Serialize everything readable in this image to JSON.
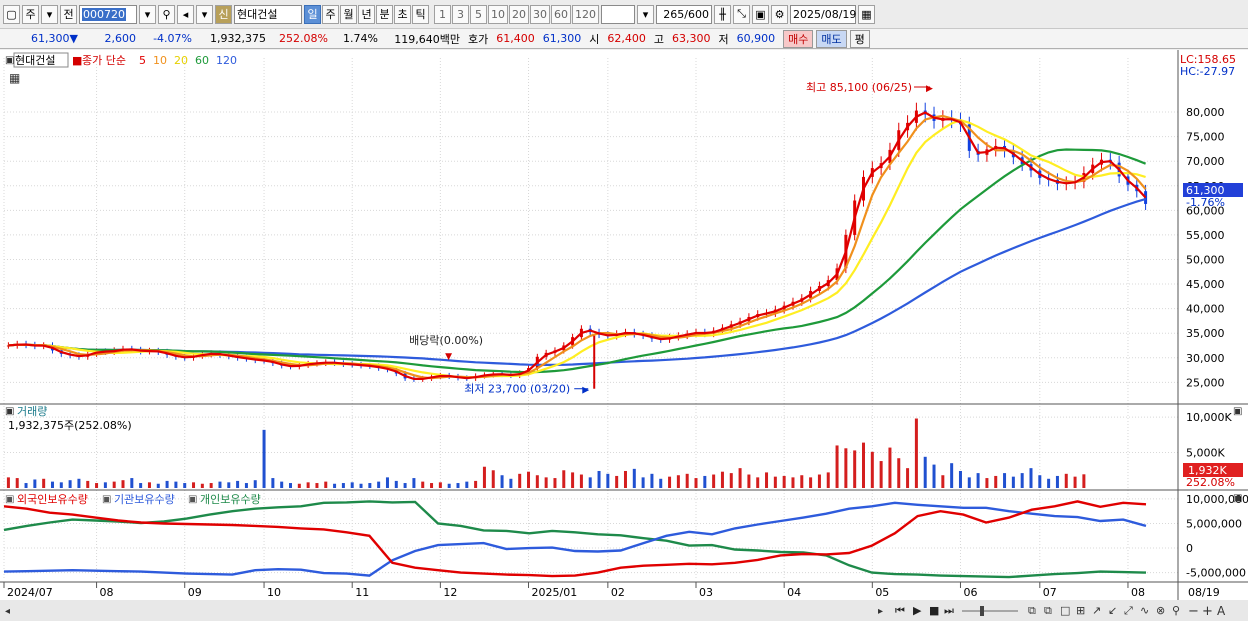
{
  "toolbar": {
    "period_label": "주",
    "prev_label": "전",
    "code": "000720",
    "badge": "신",
    "stock_name": "현대건설",
    "periods": [
      "일",
      "주",
      "월",
      "년",
      "분",
      "초",
      "틱"
    ],
    "selected_period": "일",
    "intervals": [
      "1",
      "3",
      "5",
      "10",
      "20",
      "30",
      "60",
      "120"
    ],
    "count": "265",
    "total": "/600",
    "date": "2025/08/19"
  },
  "quote": {
    "price": "61,300▼",
    "change": "2,600",
    "change_pct": "-4.07%",
    "volume": "1,932,375",
    "vol_ratio": "252.08%",
    "turnover": "1.74%",
    "amount": "119,640백만",
    "hoga_label": "호가",
    "ask": "61,400",
    "bid": "61,300",
    "open_label": "시",
    "open": "62,400",
    "high_label": "고",
    "high": "63,300",
    "low_label": "저",
    "low": "60,900",
    "buy": "매수",
    "sell": "매도",
    "eval": "평"
  },
  "price_panel": {
    "name": "현대건설",
    "legend_title": "종가 단순",
    "ma_labels": [
      "5",
      "10",
      "20",
      "60",
      "120"
    ],
    "ma_colors": [
      "#e00000",
      "#f0901c",
      "#ffee22",
      "#1e9a3a",
      "#2e5bdc"
    ],
    "lc": "LC:158.65",
    "hc": "HC:-27.97",
    "current_price": "61,300",
    "current_pct": "-1.76%",
    "high_note": "최고 85,100 (06/25)",
    "low_note": "최저 23,700 (03/20)",
    "dividend_note": "배당락(0.00%)"
  },
  "volume_panel": {
    "title": "거래량",
    "info": "1,932,375주(252.08%)",
    "current": "1,932K",
    "pct": "252.08%",
    "ticks": [
      "10,000K",
      "5,000K"
    ]
  },
  "holdings_panel": {
    "series_names": [
      "외국인보유수량",
      "기관보유수량",
      "개인보유수량"
    ],
    "series_colors": [
      "#e00000",
      "#2e5bdc",
      "#1e8a4a"
    ],
    "ticks": [
      "10,000,000",
      "5,000,000",
      "0",
      "-5,000,000"
    ]
  },
  "xaxis": {
    "labels": [
      "2024/07",
      "08",
      "09",
      "10",
      "11",
      "12",
      "2025/01",
      "02",
      "03",
      "04",
      "05",
      "06",
      "07",
      "08"
    ],
    "end_label": "08/19"
  },
  "chart_data": {
    "type": "line",
    "price_ticks": [
      25000,
      30000,
      35000,
      40000,
      45000,
      50000,
      55000,
      60000,
      65000,
      70000,
      75000,
      80000
    ],
    "price_ylim": [
      21000,
      91000
    ],
    "close": [
      32500,
      32800,
      32600,
      32400,
      32500,
      31500,
      30800,
      30500,
      30200,
      30800,
      31300,
      31200,
      31500,
      31800,
      31600,
      31300,
      31400,
      31200,
      30600,
      30200,
      30000,
      30400,
      30700,
      30900,
      30600,
      30300,
      30000,
      29800,
      29500,
      29400,
      28900,
      28400,
      28200,
      28500,
      28800,
      28900,
      29100,
      28900,
      28700,
      28600,
      28400,
      28300,
      27900,
      27600,
      26800,
      25800,
      25600,
      25800,
      26200,
      26400,
      26200,
      25900,
      25800,
      26300,
      26500,
      26700,
      26600,
      26400,
      26900,
      27900,
      30200,
      31000,
      31500,
      32500,
      34200,
      35900,
      35200,
      34700,
      34400,
      34900,
      35200,
      34800,
      34500,
      33900,
      33700,
      34200,
      34500,
      34900,
      35200,
      34900,
      35500,
      36100,
      36800,
      37400,
      38300,
      38900,
      39100,
      39800,
      40600,
      41400,
      42100,
      43600,
      44600,
      45800,
      48200,
      55000,
      62000,
      66800,
      68600,
      69600,
      72300,
      76300,
      77800,
      80300,
      79500,
      78200,
      78800,
      78300,
      77500,
      72100,
      71300,
      72400,
      73100,
      72200,
      70800,
      69400,
      68100,
      66600,
      66200,
      65400,
      65600,
      65800,
      67600,
      69300,
      70300,
      69700,
      66900,
      65200,
      63900,
      61300
    ],
    "volume_ylim": [
      0,
      11000
    ],
    "volume_k": [
      1500,
      1400,
      700,
      1200,
      1300,
      900,
      800,
      1100,
      1300,
      1000,
      700,
      800,
      900,
      1100,
      1400,
      700,
      800,
      600,
      1000,
      900,
      700,
      800,
      600,
      700,
      900,
      800,
      1000,
      700,
      1100,
      8200,
      1400,
      900,
      700,
      600,
      800,
      700,
      900,
      600,
      700,
      800,
      600,
      700,
      900,
      1500,
      1000,
      700,
      1400,
      900,
      700,
      800,
      600,
      700,
      900,
      1000,
      3000,
      2500,
      1800,
      1300,
      2000,
      2300,
      1800,
      1500,
      1400,
      2500,
      2200,
      1900,
      1500,
      2400,
      2000,
      1700,
      2400,
      2700,
      1500,
      2000,
      1300,
      1600,
      1800,
      2000,
      1400,
      1700,
      1900,
      2300,
      2100,
      2800,
      1900,
      1500,
      2200,
      1600,
      1700,
      1500,
      1800,
      1500,
      1900,
      2200,
      6000,
      5600,
      5300,
      6400,
      5100,
      3800,
      5700,
      4200,
      2800,
      9800,
      4400,
      3300,
      1800,
      3500,
      2400,
      1500,
      2100,
      1400,
      1700,
      2100,
      1600,
      2100,
      2800,
      1800,
      1300,
      1700,
      2000,
      1600,
      1932
    ],
    "holdings_ylim": [
      -6500000,
      11000000
    ],
    "foreign": [
      8500000,
      8000000,
      7200000,
      6800000,
      6200000,
      5600000,
      5200000,
      5000000,
      4900000,
      4800000,
      4700000,
      4500000,
      4300000,
      4000000,
      3800000,
      3200000,
      2500000,
      -3000000,
      -4000000,
      -4500000,
      -5000000,
      -5200000,
      -5400000,
      -5500000,
      -5700000,
      -5600000,
      -5000000,
      -4000000,
      -3600000,
      -3400000,
      -3200000,
      -3300000,
      -3000000,
      -2400000,
      -1500000,
      -1200000,
      -1300000,
      -1000000,
      500000,
      3000000,
      6500000,
      7500000,
      6800000,
      5200000,
      6200000,
      7800000,
      8500000,
      9500000,
      8400000,
      9200000,
      8900000
    ],
    "institution": [
      -4800000,
      -4700000,
      -4600000,
      -4500000,
      -4600000,
      -4700000,
      -4800000,
      -5000000,
      -5200000,
      -5300000,
      -5400000,
      -4500000,
      -4300000,
      -4400000,
      -5100000,
      -5200000,
      -5600000,
      -2500000,
      -600000,
      600000,
      800000,
      1000000,
      -200000,
      0,
      100000,
      -600000,
      -700000,
      -500000,
      1000000,
      2500000,
      3300000,
      2800000,
      4000000,
      4800000,
      5500000,
      6200000,
      7000000,
      8000000,
      8500000,
      9200000,
      8800000,
      8500000,
      8200000,
      8200000,
      7500000,
      7000000,
      6500000,
      6300000,
      5500000,
      5800000,
      4500000
    ],
    "individual": [
      3700000,
      4500000,
      5200000,
      5800000,
      5600000,
      5400000,
      5100000,
      5400000,
      6000000,
      6800000,
      7500000,
      8000000,
      8300000,
      8500000,
      9200000,
      9300000,
      9500000,
      9300000,
      9400000,
      5000000,
      4500000,
      3600000,
      3500000,
      3000000,
      3500000,
      3200000,
      2800000,
      2600000,
      2000000,
      1500000,
      500000,
      600000,
      -300000,
      -500000,
      -800000,
      -900000,
      -1500000,
      -3500000,
      -5000000,
      -5300000,
      -5400000,
      -5600000,
      -5700000,
      -5800000,
      -5900000,
      -5600000,
      -5300000,
      -5100000,
      -4800000,
      -4900000,
      -5000000
    ],
    "dividend_index": 50,
    "low_index": 66,
    "high_index": 105
  }
}
